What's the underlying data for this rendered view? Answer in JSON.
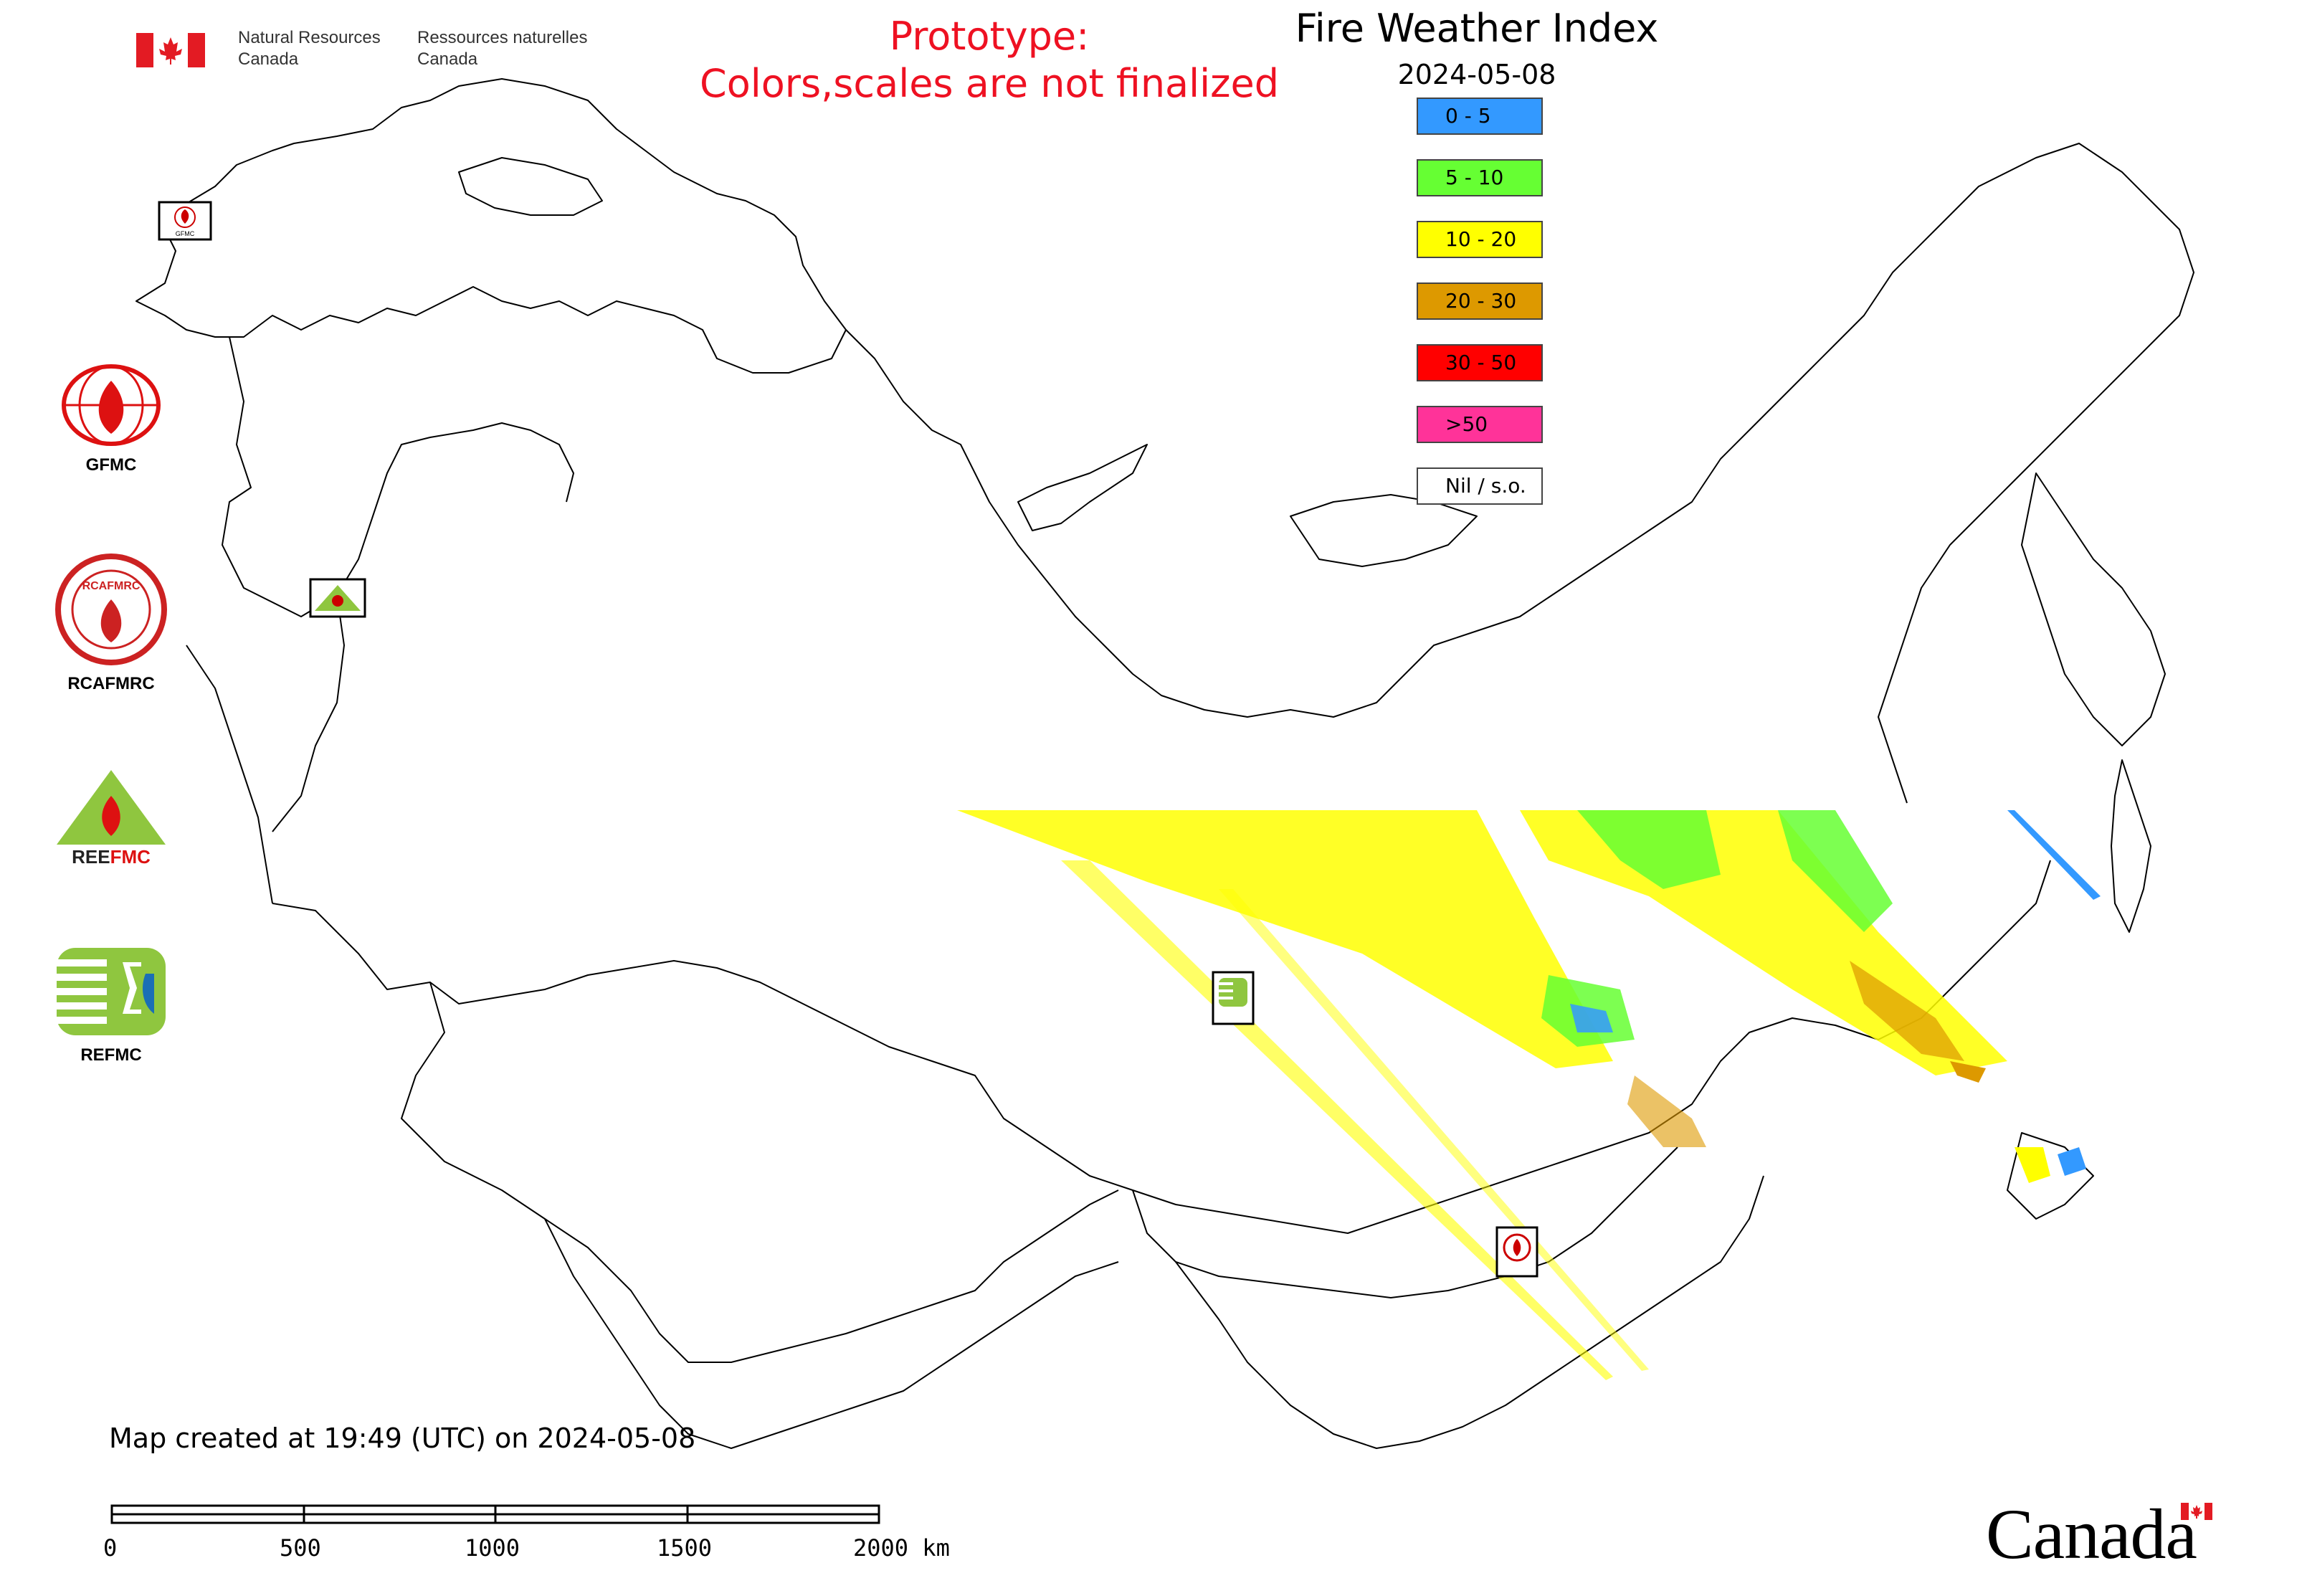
{
  "header": {
    "department_en_line1": "Natural Resources",
    "department_en_line2": "Canada",
    "department_fr_line1": "Ressources naturelles",
    "department_fr_line2": "Canada"
  },
  "banner": {
    "line1": "Prototype:",
    "line2": "Colors,scales are not finalized",
    "color": "#ee1122"
  },
  "map": {
    "title": "Fire Weather Index",
    "date": "2024-05-08",
    "legend": [
      {
        "label": "0 - 5",
        "color": "#3399ff"
      },
      {
        "label": "5 - 10",
        "color": "#66ff33"
      },
      {
        "label": "10 - 20",
        "color": "#ffff00"
      },
      {
        "label": "20 - 30",
        "color": "#dd9900"
      },
      {
        "label": "30 - 50",
        "color": "#ff0000"
      },
      {
        "label": ">50",
        "color": "#ff3399"
      },
      {
        "label": "Nil / s.o.",
        "color": "#ffffff"
      }
    ],
    "centers": [
      {
        "label": "GFMC",
        "icon": "gfmc-icon"
      },
      {
        "label": "RCAFMRC",
        "icon": "rcafmrc-icon"
      },
      {
        "label": "REEFMC",
        "icon": "reefmc-icon"
      },
      {
        "label": "REFMC",
        "icon": "refmc-icon"
      }
    ]
  },
  "footer": {
    "created": "Map created at 19:49 (UTC) on 2024-05-08",
    "scale_labels": [
      "0",
      "500",
      "1000",
      "1500",
      "2000 km"
    ],
    "wordmark": "Canada"
  }
}
